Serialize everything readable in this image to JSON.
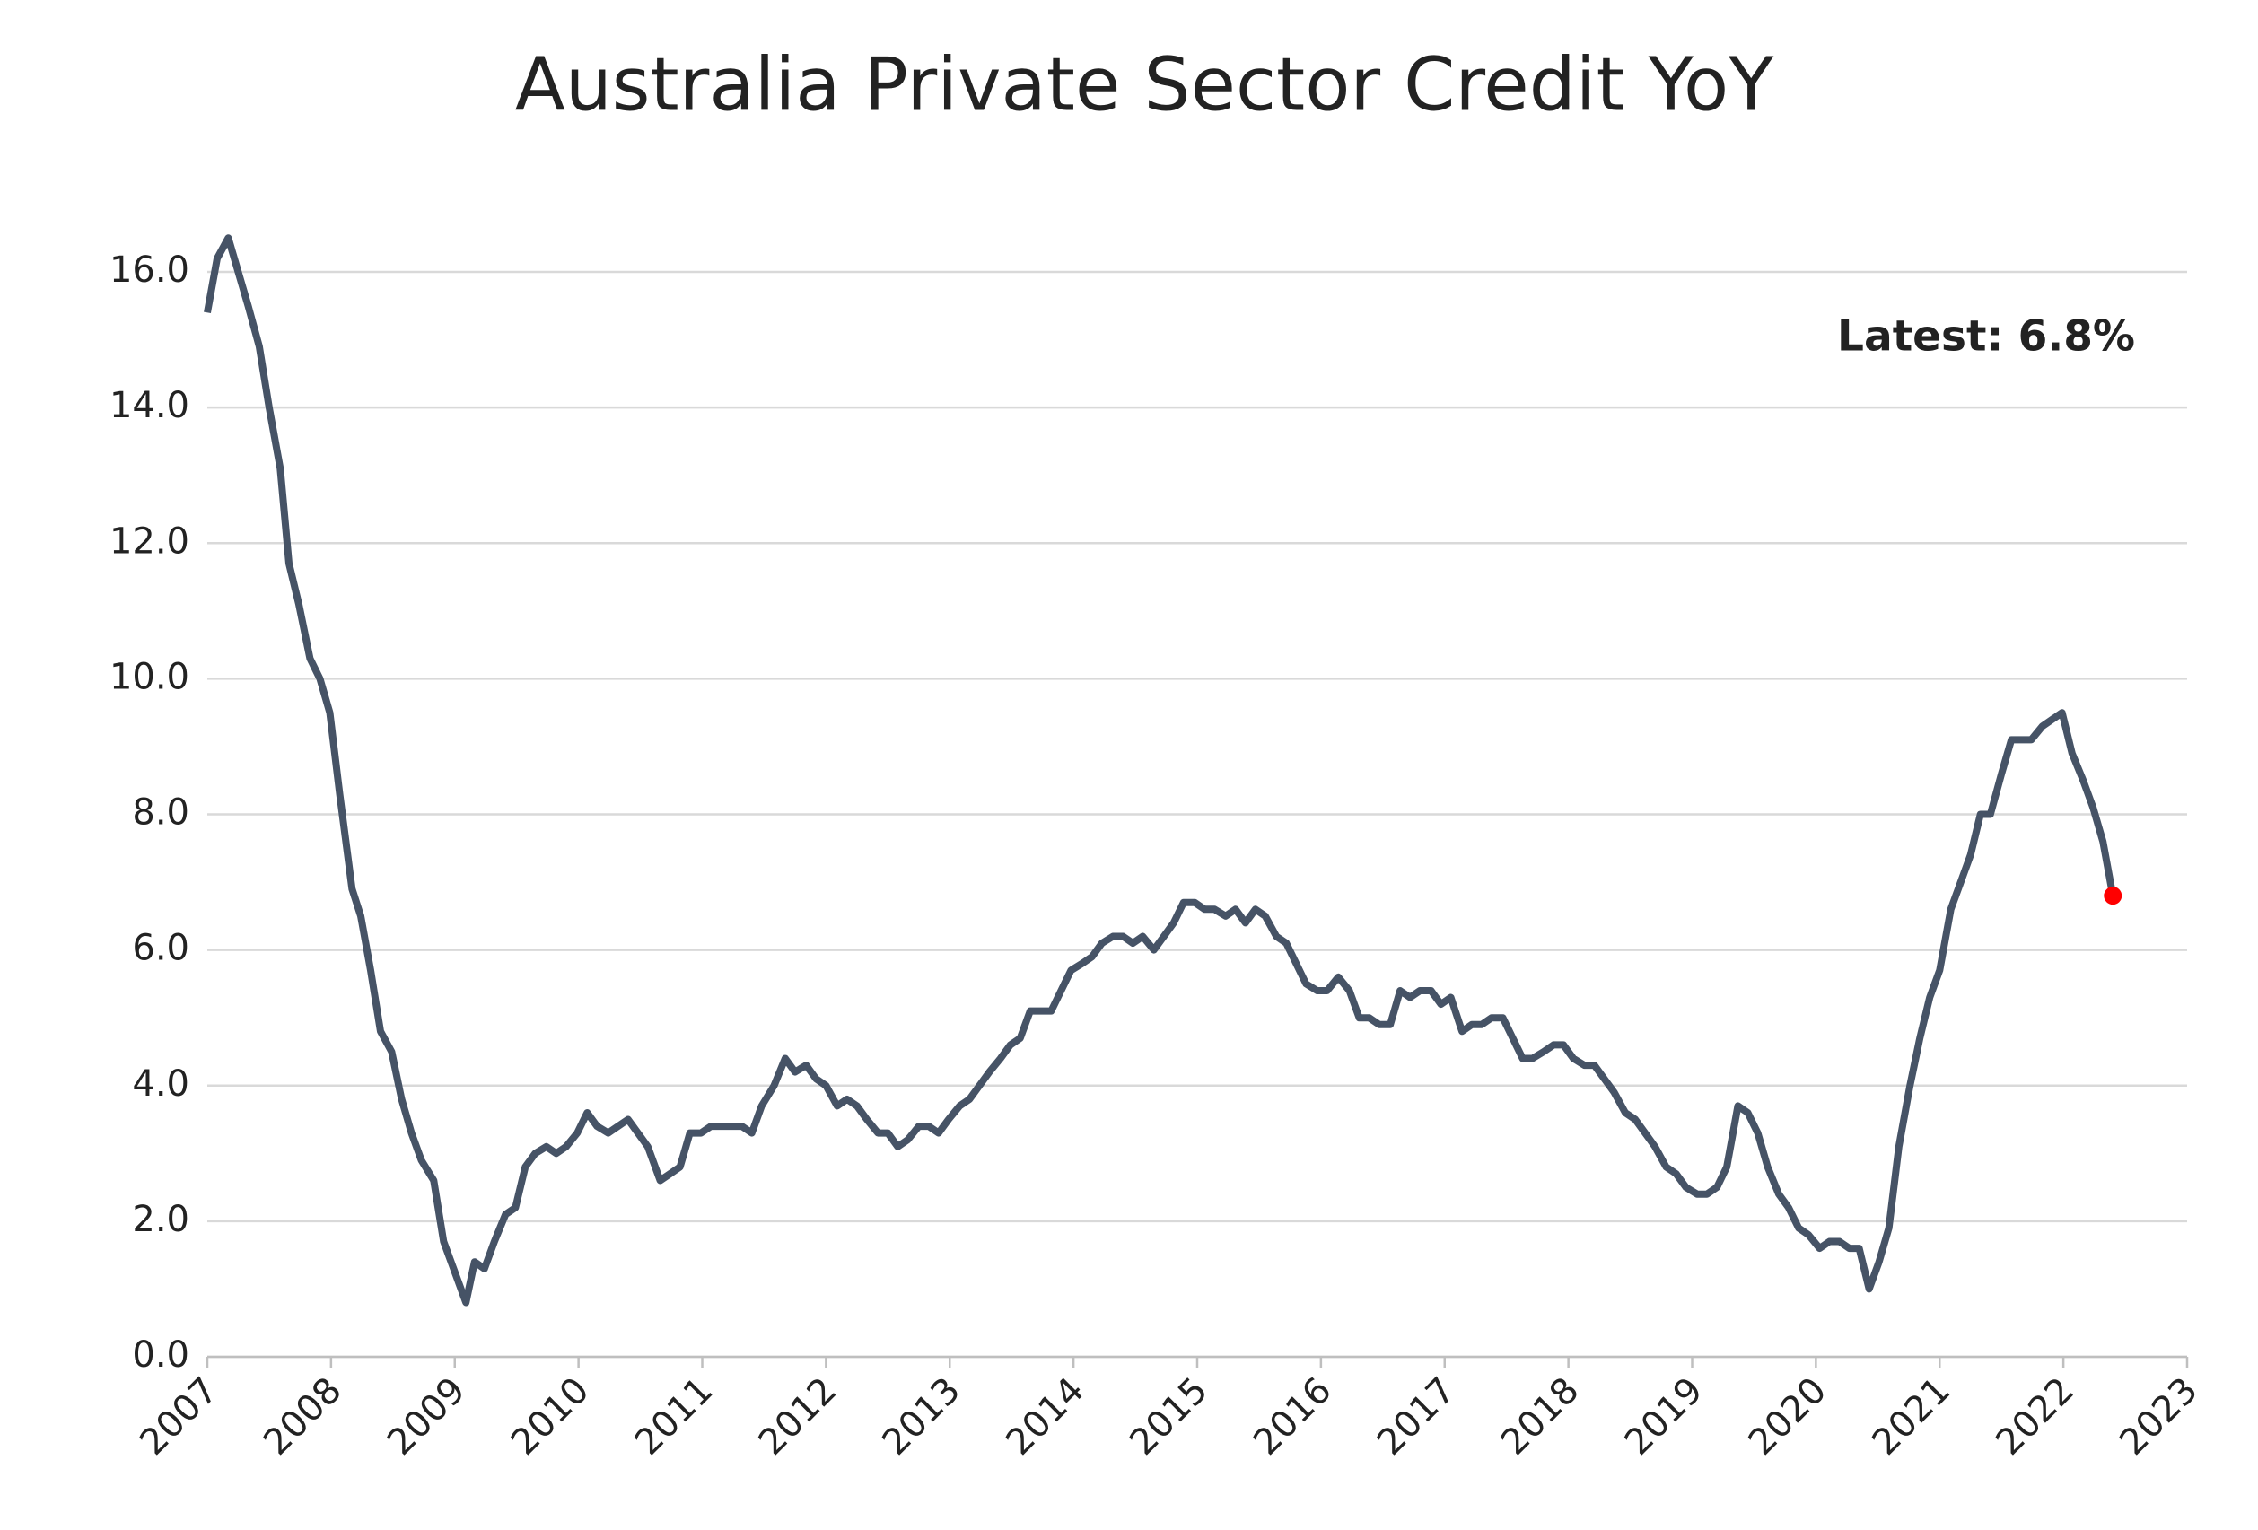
{
  "chart_data": {
    "type": "line",
    "title": "Australia Private Sector Credit YoY",
    "x": [
      2007.0,
      2007.08,
      2007.17,
      2007.33,
      2007.42,
      2007.5,
      2007.59,
      2007.66,
      2007.74,
      2007.83,
      2007.91,
      2007.99,
      2008.07,
      2008.17,
      2008.24,
      2008.32,
      2008.4,
      2008.49,
      2008.57,
      2008.65,
      2008.73,
      2008.83,
      2008.91,
      2008.99,
      2009.09,
      2009.16,
      2009.24,
      2009.32,
      2009.41,
      2009.49,
      2009.57,
      2009.65,
      2009.74,
      2009.82,
      2009.9,
      2009.99,
      2010.07,
      2010.15,
      2010.24,
      2010.32,
      2010.4,
      2010.48,
      2010.56,
      2010.66,
      2010.74,
      2010.82,
      2010.9,
      2010.99,
      2011.07,
      2011.32,
      2011.4,
      2011.48,
      2011.58,
      2011.67,
      2011.75,
      2011.84,
      2011.92,
      2012.0,
      2012.09,
      2012.17,
      2012.25,
      2012.33,
      2012.42,
      2012.5,
      2012.58,
      2012.66,
      2012.75,
      2012.83,
      2012.91,
      2012.99,
      2013.08,
      2013.16,
      2013.24,
      2013.32,
      2013.41,
      2013.49,
      2013.57,
      2013.65,
      2013.82,
      2013.9,
      2013.98,
      2014.07,
      2014.15,
      2014.23,
      2014.32,
      2014.4,
      2014.48,
      2014.56,
      2014.65,
      2014.73,
      2014.81,
      2014.89,
      2014.98,
      2015.06,
      2015.14,
      2015.23,
      2015.31,
      2015.39,
      2015.47,
      2015.55,
      2015.64,
      2015.72,
      2015.8,
      2015.88,
      2015.97,
      2016.05,
      2016.14,
      2016.23,
      2016.31,
      2016.39,
      2016.47,
      2016.56,
      2016.64,
      2016.72,
      2016.8,
      2016.89,
      2016.97,
      2017.05,
      2017.14,
      2017.22,
      2017.3,
      2017.38,
      2017.47,
      2017.55,
      2017.63,
      2017.71,
      2017.8,
      2017.88,
      2017.96,
      2018.04,
      2018.13,
      2018.21,
      2018.29,
      2018.37,
      2018.46,
      2018.54,
      2018.62,
      2018.7,
      2018.79,
      2018.87,
      2018.95,
      2019.04,
      2019.12,
      2019.2,
      2019.28,
      2019.37,
      2019.45,
      2019.53,
      2019.61,
      2019.7,
      2019.78,
      2019.86,
      2019.94,
      2020.03,
      2020.11,
      2020.19,
      2020.27,
      2020.35,
      2020.43,
      2020.51,
      2020.59,
      2020.67,
      2020.76,
      2020.84,
      2020.92,
      2021.0,
      2021.09,
      2021.17,
      2021.25,
      2021.33,
      2021.41,
      2021.5,
      2021.58,
      2021.66,
      2021.74,
      2021.83,
      2021.91,
      2021.99,
      2022.07,
      2022.16,
      2022.24,
      2022.32,
      2022.4
    ],
    "series": [
      {
        "color": "#465366",
        "values": [
          15.4,
          16.2,
          16.5,
          15.5,
          14.9,
          14.0,
          13.1,
          11.7,
          11.1,
          10.3,
          10.0,
          9.5,
          8.3,
          6.9,
          6.5,
          5.7,
          4.8,
          4.5,
          3.8,
          3.3,
          2.9,
          2.6,
          1.7,
          1.3,
          0.8,
          1.4,
          1.3,
          1.7,
          2.1,
          2.2,
          2.8,
          3.0,
          3.1,
          3.0,
          3.1,
          3.3,
          3.6,
          3.4,
          3.3,
          3.4,
          3.5,
          3.3,
          3.1,
          2.6,
          2.7,
          2.8,
          3.3,
          3.3,
          3.4,
          3.4,
          3.3,
          3.7,
          4.0,
          4.4,
          4.2,
          4.3,
          4.1,
          4.0,
          3.7,
          3.8,
          3.7,
          3.5,
          3.3,
          3.3,
          3.1,
          3.2,
          3.4,
          3.4,
          3.3,
          3.5,
          3.7,
          3.8,
          4.0,
          4.2,
          4.4,
          4.6,
          4.7,
          5.1,
          5.1,
          5.4,
          5.7,
          5.8,
          5.9,
          6.1,
          6.2,
          6.2,
          6.1,
          6.2,
          6.0,
          6.2,
          6.4,
          6.7,
          6.7,
          6.6,
          6.6,
          6.5,
          6.6,
          6.4,
          6.6,
          6.5,
          6.2,
          6.1,
          5.8,
          5.5,
          5.4,
          5.4,
          5.6,
          5.4,
          5.0,
          5.0,
          4.9,
          4.9,
          5.4,
          5.3,
          5.4,
          5.4,
          5.2,
          5.3,
          4.8,
          4.9,
          4.9,
          5.0,
          5.0,
          4.7,
          4.4,
          4.4,
          4.5,
          4.6,
          4.6,
          4.4,
          4.3,
          4.3,
          4.1,
          3.9,
          3.6,
          3.5,
          3.3,
          3.1,
          2.8,
          2.7,
          2.5,
          2.4,
          2.4,
          2.5,
          2.8,
          3.7,
          3.6,
          3.3,
          2.8,
          2.4,
          2.2,
          1.9,
          1.8,
          1.6,
          1.7,
          1.7,
          1.6,
          1.6,
          1.0,
          1.4,
          1.9,
          3.1,
          4.0,
          4.7,
          5.3,
          5.7,
          6.6,
          7.0,
          7.4,
          8.0,
          8.0,
          8.6,
          9.1,
          9.1,
          9.1,
          9.3,
          9.4,
          9.5,
          8.9,
          8.5,
          8.1,
          7.6,
          6.8
        ]
      }
    ],
    "latest_marker_color": "#ff0000",
    "annotation": "Latest: 6.8%",
    "xlim": [
      2007,
      2023
    ],
    "xticks": [
      2007,
      2008,
      2009,
      2010,
      2011,
      2012,
      2013,
      2014,
      2015,
      2016,
      2017,
      2018,
      2019,
      2020,
      2021,
      2022,
      2023
    ],
    "ylim": [
      0,
      16.5
    ],
    "yticks": [
      {
        "value": 0,
        "label": "0.0"
      },
      {
        "value": 2,
        "label": "2.0"
      },
      {
        "value": 4,
        "label": "4.0"
      },
      {
        "value": 6,
        "label": "6.0"
      },
      {
        "value": 8,
        "label": "8.0"
      },
      {
        "value": 10,
        "label": "10.0"
      },
      {
        "value": 12,
        "label": "12.0"
      },
      {
        "value": 14,
        "label": "14.0"
      },
      {
        "value": 16,
        "label": "16.0"
      }
    ],
    "grid": true
  }
}
